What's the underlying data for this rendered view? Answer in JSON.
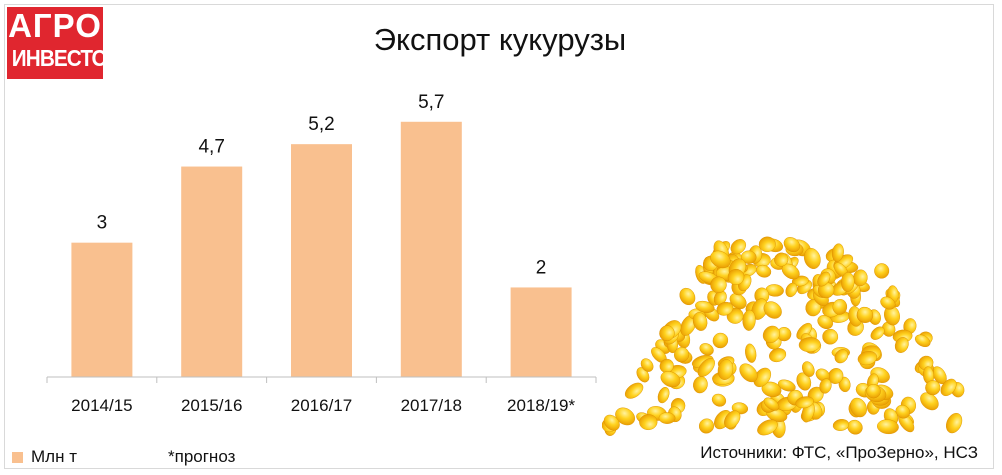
{
  "logo": {
    "line1": "АГРО",
    "line2": "ИНВЕСТОР"
  },
  "chart_data": {
    "type": "bar",
    "title": "Экспорт кукурузы",
    "categories": [
      "2014/15",
      "2015/16",
      "2016/17",
      "2017/18",
      "2018/19*"
    ],
    "series": [
      {
        "name": "Млн т",
        "values": [
          3,
          4.7,
          5.2,
          5.7,
          2
        ]
      }
    ],
    "data_labels": [
      "3",
      "4,7",
      "5,2",
      "5,7",
      "2"
    ],
    "ylim": [
      0,
      6.7
    ],
    "bar_color": "#f9c08f",
    "grid": false,
    "legend": "bottom-left"
  },
  "footnote": "*прогноз",
  "sources": "Источники: ФТС, «ПроЗерно», НСЗ",
  "image": {
    "subject": "corn-kernels-pile"
  }
}
